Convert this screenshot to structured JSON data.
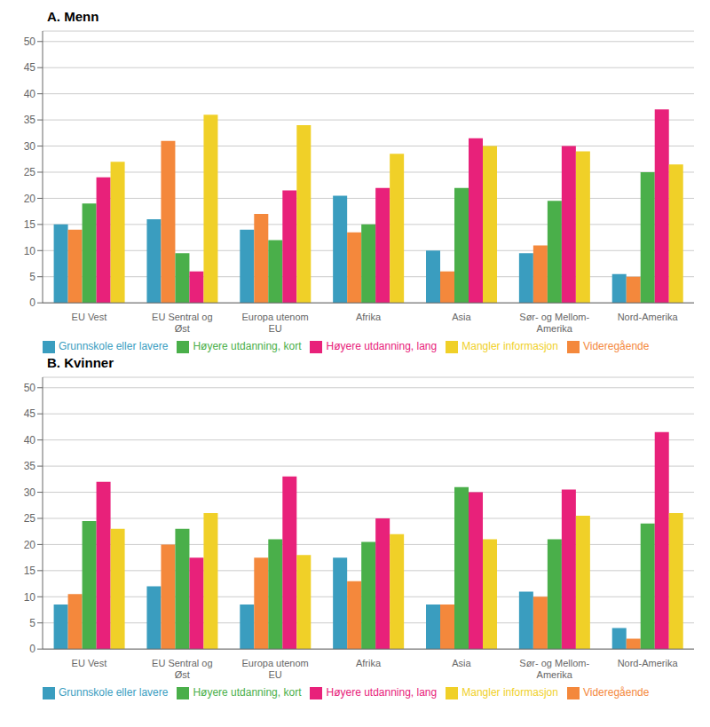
{
  "chart_data": [
    {
      "type": "bar",
      "title": "A. Menn",
      "categories": [
        "EU Vest",
        "EU Sentral og\nØst",
        "Europa utenom\nEU",
        "Afrika",
        "Asia",
        "Sør- og Mellom-\nAmerika",
        "Nord-Amerika"
      ],
      "series": [
        {
          "name": "Grunnskole eller lavere",
          "color": "#3a9dbf",
          "values": [
            15,
            16,
            14,
            20.5,
            10,
            9.5,
            5.5
          ]
        },
        {
          "name": "Videregående",
          "color": "#f4883c",
          "values": [
            14,
            31,
            17,
            13.5,
            6,
            11,
            5
          ]
        },
        {
          "name": "Høyere utdanning, kort",
          "color": "#4aaf4a",
          "values": [
            19,
            9.5,
            12,
            15,
            22,
            19.5,
            25
          ]
        },
        {
          "name": "Høyere utdanning, lang",
          "color": "#e8217a",
          "values": [
            24,
            6,
            21.5,
            22,
            31.5,
            30,
            37
          ]
        },
        {
          "name": "Mangler informasjon",
          "color": "#f0d028",
          "values": [
            27,
            36,
            34,
            28.5,
            30,
            29,
            26.5
          ]
        }
      ],
      "ylim": [
        0,
        52
      ],
      "yticks": [
        0,
        5,
        10,
        15,
        20,
        25,
        30,
        35,
        40,
        45,
        50
      ],
      "grid": true,
      "legend": "bottom"
    },
    {
      "type": "bar",
      "title": "B. Kvinner",
      "categories": [
        "EU Vest",
        "EU Sentral og\nØst",
        "Europa utenom\nEU",
        "Afrika",
        "Asia",
        "Sør- og Mellom-\nAmerika",
        "Nord-Amerika"
      ],
      "series": [
        {
          "name": "Grunnskole eller lavere",
          "color": "#3a9dbf",
          "values": [
            8.5,
            12,
            8.5,
            17.5,
            8.5,
            11,
            4
          ]
        },
        {
          "name": "Videregående",
          "color": "#f4883c",
          "values": [
            10.5,
            20,
            17.5,
            13,
            8.5,
            10,
            2
          ]
        },
        {
          "name": "Høyere utdanning, kort",
          "color": "#4aaf4a",
          "values": [
            24.5,
            23,
            21,
            20.5,
            31,
            21,
            24
          ]
        },
        {
          "name": "Høyere utdanning, lang",
          "color": "#e8217a",
          "values": [
            32,
            17.5,
            33,
            25,
            30,
            30.5,
            41.5
          ]
        },
        {
          "name": "Mangler informasjon",
          "color": "#f0d028",
          "values": [
            23,
            26,
            18,
            22,
            21,
            25.5,
            26
          ]
        }
      ],
      "ylim": [
        0,
        52
      ],
      "yticks": [
        0,
        5,
        10,
        15,
        20,
        25,
        30,
        35,
        40,
        45,
        50
      ],
      "grid": true,
      "legend": "bottom"
    }
  ]
}
